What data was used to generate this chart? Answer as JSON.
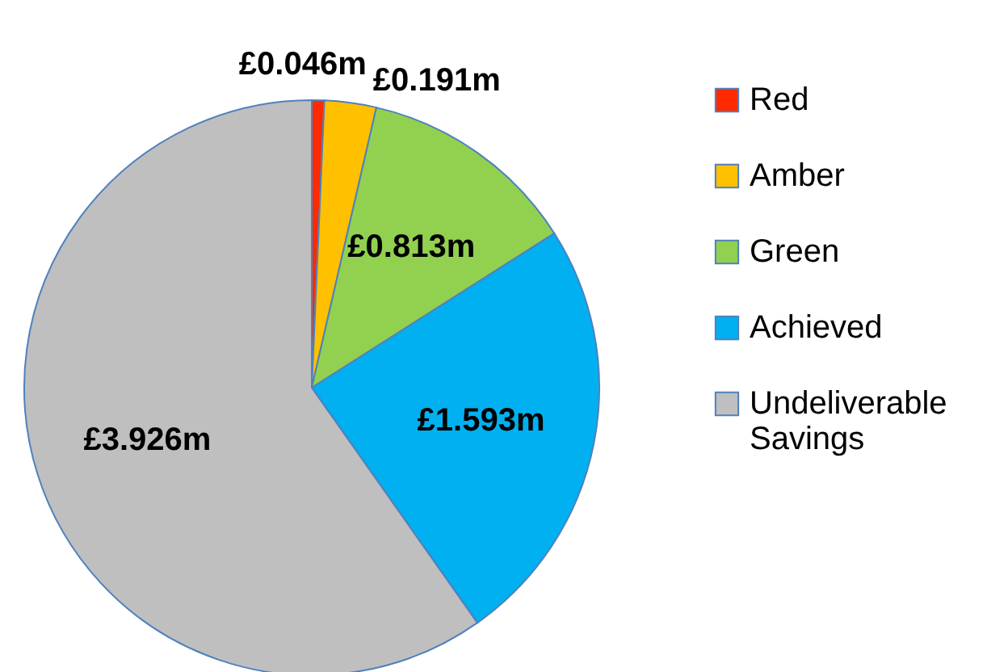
{
  "chart_data": {
    "type": "pie",
    "categories": [
      "Red",
      "Amber",
      "Green",
      "Achieved",
      "Undeliverable Savings"
    ],
    "values": [
      0.046,
      0.191,
      0.813,
      1.593,
      3.926
    ],
    "value_labels": [
      "£0.046m",
      "£0.191m",
      "£0.813m",
      "£1.593m",
      "£3.926m"
    ],
    "colors": [
      "#ff2a00",
      "#ffc000",
      "#92d050",
      "#00b0f0",
      "#bfbfbf"
    ],
    "legend": "right"
  }
}
